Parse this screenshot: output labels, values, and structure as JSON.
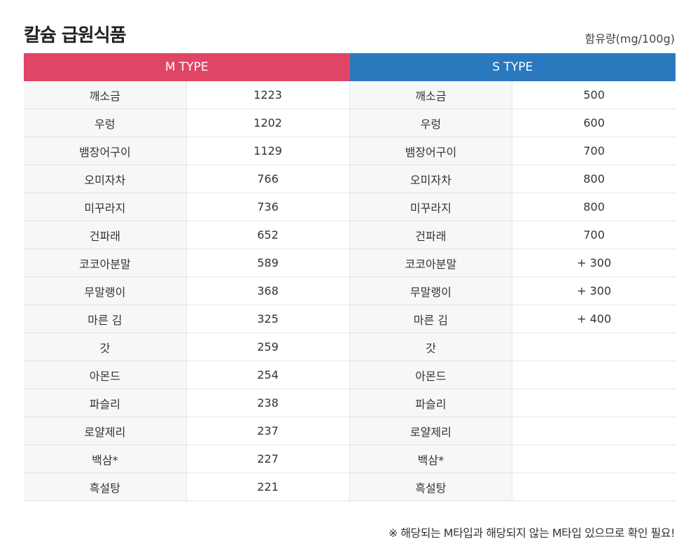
{
  "title": "칼슘 급원식품",
  "unit": "함유량(mg/100g)",
  "headers": {
    "m": "M TYPE",
    "s": "S TYPE"
  },
  "rows": [
    {
      "m_name": "깨소금",
      "m_val": "1223",
      "s_name": "깨소금",
      "s_val": "500"
    },
    {
      "m_name": "우렁",
      "m_val": "1202",
      "s_name": "우렁",
      "s_val": "600"
    },
    {
      "m_name": "뱀장어구이",
      "m_val": "1129",
      "s_name": "뱀장어구이",
      "s_val": "700"
    },
    {
      "m_name": "오미자차",
      "m_val": "766",
      "s_name": "오미자차",
      "s_val": "800"
    },
    {
      "m_name": "미꾸라지",
      "m_val": "736",
      "s_name": "미꾸라지",
      "s_val": "800"
    },
    {
      "m_name": "건파래",
      "m_val": "652",
      "s_name": "건파래",
      "s_val": "700"
    },
    {
      "m_name": "코코아분말",
      "m_val": "589",
      "s_name": "코코아분말",
      "s_val": "+ 300"
    },
    {
      "m_name": "무말랭이",
      "m_val": "368",
      "s_name": "무말랭이",
      "s_val": "+ 300"
    },
    {
      "m_name": "마른 김",
      "m_val": "325",
      "s_name": "마른 김",
      "s_val": "+ 400"
    },
    {
      "m_name": "갓",
      "m_val": "259",
      "s_name": "갓",
      "s_val": ""
    },
    {
      "m_name": "아몬드",
      "m_val": "254",
      "s_name": "아몬드",
      "s_val": ""
    },
    {
      "m_name": "파슬리",
      "m_val": "238",
      "s_name": "파슬리",
      "s_val": ""
    },
    {
      "m_name": "로얄제리",
      "m_val": "237",
      "s_name": "로얄제리",
      "s_val": ""
    },
    {
      "m_name": "백삼*",
      "m_val": "227",
      "s_name": "백삼*",
      "s_val": ""
    },
    {
      "m_name": "흑설탕",
      "m_val": "221",
      "s_name": "흑설탕",
      "s_val": ""
    }
  ],
  "note": "※ 해당되는 M타입과 해당되지 않는 M타입 있으므로 확인 필요!",
  "colors": {
    "m_header": "#e04565",
    "s_header": "#2a78be"
  }
}
